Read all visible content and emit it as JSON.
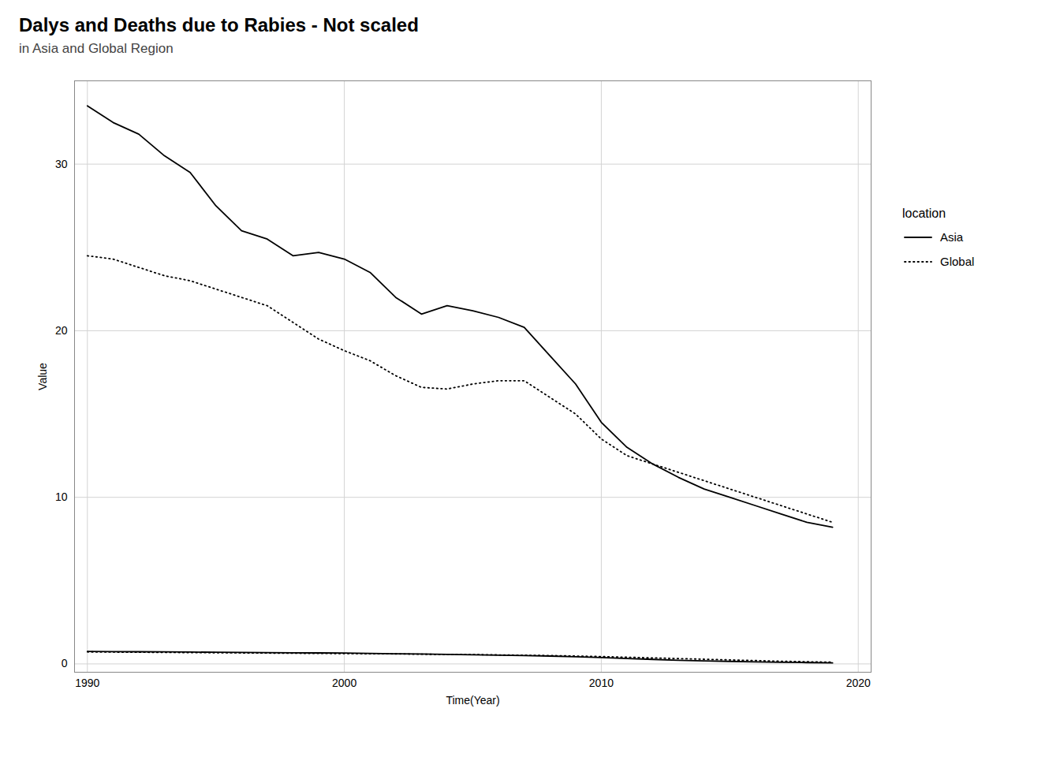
{
  "chart_data": {
    "type": "line",
    "title": "Dalys and Deaths due to Rabies - Not scaled",
    "subtitle": "in Asia and Global Region",
    "xlabel": "Time(Year)",
    "ylabel": "Value",
    "legend_title": "location",
    "x": [
      1990,
      1991,
      1992,
      1993,
      1994,
      1995,
      1996,
      1997,
      1998,
      1999,
      2000,
      2001,
      2002,
      2003,
      2004,
      2005,
      2006,
      2007,
      2008,
      2009,
      2010,
      2011,
      2012,
      2013,
      2014,
      2015,
      2016,
      2017,
      2018,
      2019
    ],
    "series": [
      {
        "name": "Asia",
        "color": "#000000",
        "line_style": "solid",
        "values": [
          33.5,
          32.5,
          31.8,
          30.5,
          29.5,
          27.5,
          26.0,
          25.5,
          24.5,
          24.7,
          24.3,
          23.5,
          22.0,
          21.0,
          21.5,
          21.2,
          20.8,
          20.2,
          18.5,
          16.8,
          14.5,
          13.0,
          12.0,
          11.2,
          10.5,
          10.0,
          9.5,
          9.0,
          8.5,
          8.2
        ]
      },
      {
        "name": "Global",
        "color": "#000000",
        "line_style": "dotted",
        "values": [
          24.5,
          24.3,
          23.8,
          23.3,
          23.0,
          22.5,
          22.0,
          21.5,
          20.5,
          19.5,
          18.8,
          18.2,
          17.3,
          16.6,
          16.5,
          16.8,
          17.0,
          17.0,
          16.0,
          15.0,
          13.5,
          12.5,
          12.0,
          11.5,
          11.0,
          10.5,
          10.0,
          9.5,
          9.0,
          8.5
        ]
      },
      {
        "name": "Asia",
        "color": "#000000",
        "line_style": "solid",
        "values": [
          0.75,
          0.74,
          0.73,
          0.72,
          0.71,
          0.7,
          0.69,
          0.68,
          0.67,
          0.66,
          0.65,
          0.63,
          0.61,
          0.59,
          0.57,
          0.55,
          0.52,
          0.5,
          0.47,
          0.43,
          0.38,
          0.32,
          0.27,
          0.22,
          0.18,
          0.15,
          0.12,
          0.1,
          0.08,
          0.06
        ]
      },
      {
        "name": "Global",
        "color": "#000000",
        "line_style": "dotted",
        "values": [
          0.72,
          0.71,
          0.7,
          0.69,
          0.68,
          0.67,
          0.66,
          0.65,
          0.64,
          0.63,
          0.62,
          0.61,
          0.6,
          0.58,
          0.57,
          0.56,
          0.54,
          0.52,
          0.5,
          0.47,
          0.44,
          0.4,
          0.36,
          0.32,
          0.28,
          0.24,
          0.2,
          0.16,
          0.13,
          0.1
        ]
      }
    ],
    "xlim": [
      1989.5,
      2020.5
    ],
    "ylim": [
      -0.5,
      35
    ],
    "xticks": [
      1990,
      2000,
      2010,
      2020
    ],
    "yticks": [
      0,
      10,
      20,
      30
    ],
    "grid": true,
    "legend": "right"
  }
}
